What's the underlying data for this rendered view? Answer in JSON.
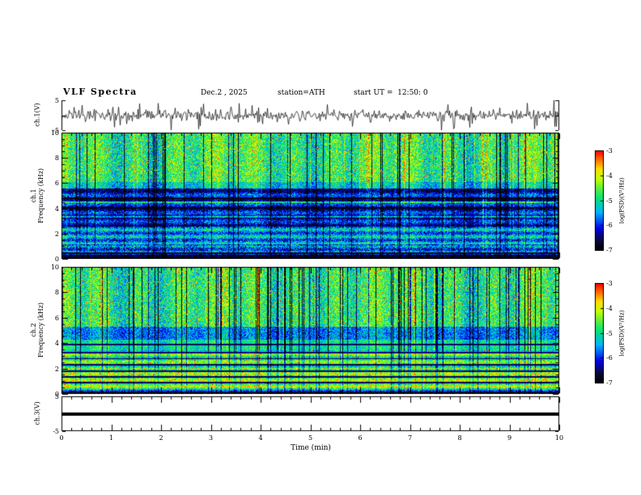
{
  "header": {
    "title": "VLF Spectra",
    "date": "Dec.2 , 2025",
    "station": "station=ATH",
    "start_ut": "start UT =  12:50: 0"
  },
  "time_axis": {
    "label": "Time (min)",
    "ticks": [
      "0",
      "1",
      "2",
      "3",
      "4",
      "5",
      "6",
      "7",
      "8",
      "9",
      "10"
    ],
    "range_min": [
      0,
      10
    ]
  },
  "colorbar": {
    "label": "log(PSD)(V²/Hz)",
    "ticks": [
      "-3",
      "-4",
      "-5",
      "-6",
      "-7"
    ],
    "range": [
      -7,
      -3
    ],
    "colormap": [
      {
        "t": 0.0,
        "c": "#000000"
      },
      {
        "t": 0.1,
        "c": "#0a0a3c"
      },
      {
        "t": 0.22,
        "c": "#0000ee"
      },
      {
        "t": 0.38,
        "c": "#00b4ff"
      },
      {
        "t": 0.52,
        "c": "#00e678"
      },
      {
        "t": 0.62,
        "c": "#5af03c"
      },
      {
        "t": 0.72,
        "c": "#c8ff00"
      },
      {
        "t": 0.82,
        "c": "#ffdc00"
      },
      {
        "t": 0.9,
        "c": "#ff7800"
      },
      {
        "t": 1.0,
        "c": "#ff0000"
      }
    ]
  },
  "chart_data": [
    {
      "type": "line",
      "id": "ch1_waveform",
      "ylabel": "ch.1(V)",
      "ylim": [
        -5,
        5
      ],
      "yticks": [
        "5",
        "-5"
      ],
      "description": "broadband noise waveform around 0 V, typical amplitude ±1.5 V with impulsive spikes to ±4 V over 0-10 min",
      "noise_std_v": 0.9,
      "spike_prob": 0.06,
      "spike_amp_v": [
        2,
        4.2
      ],
      "seed": 11
    },
    {
      "type": "heatmap",
      "id": "ch1_spectrogram",
      "ylabel": [
        "ch.1",
        "Frequency (kHz)"
      ],
      "ylim_khz": [
        0,
        10
      ],
      "yticks": [
        "10",
        "8",
        "6",
        "4",
        "2",
        "0"
      ],
      "psd_range": [
        -7,
        -3
      ],
      "bands": [
        {
          "f": [
            0,
            0.35
          ],
          "base": 0.06,
          "noise": 0.1,
          "streak_gain": 0.2
        },
        {
          "f": [
            0.35,
            1.2
          ],
          "base": 0.3,
          "noise": 0.18,
          "stripe_amp": 0.1,
          "stripe_period": 0.45,
          "streak_gain": 0.35
        },
        {
          "f": [
            1.2,
            2.6
          ],
          "base": 0.36,
          "noise": 0.16,
          "stripe_amp": 0.12,
          "stripe_period": 0.55,
          "streak_gain": 0.4
        },
        {
          "f": [
            2.6,
            5.6
          ],
          "base": 0.2,
          "noise": 0.15,
          "stripe_amp": 0.1,
          "stripe_period": 0.7,
          "streak_gain": 0.6
        },
        {
          "f": [
            5.6,
            6.1
          ],
          "base": 0.44,
          "noise": 0.15,
          "streak_gain": 0.9
        },
        {
          "f": [
            6.1,
            10
          ],
          "base": 0.55,
          "noise": 0.18,
          "speckle_hi": 0.05,
          "streak_gain": 1.0
        }
      ],
      "dark_rows": [
        0.5,
        4.05,
        4.85
      ],
      "bright_rows": [
        3.35,
        4.5
      ],
      "streak_dark_prob": 0.1,
      "streak_bright_prob": 0.06,
      "seed": 21
    },
    {
      "type": "heatmap",
      "id": "ch2_spectrogram",
      "ylabel": [
        "ch.2",
        "Frequency (kHz)"
      ],
      "ylim_khz": [
        0,
        10
      ],
      "yticks": [
        "10",
        "8",
        "6",
        "4",
        "2",
        "0"
      ],
      "psd_range": [
        -7,
        -3
      ],
      "bands": [
        {
          "f": [
            0,
            0.35
          ],
          "base": 0.3,
          "noise": 0.15,
          "streak_gain": 0.3
        },
        {
          "f": [
            0.35,
            2.1
          ],
          "base": 0.62,
          "noise": 0.15,
          "stripe_amp": 0.14,
          "stripe_period": 0.5,
          "speckle_red": 0.03,
          "streak_gain": 0.35
        },
        {
          "f": [
            2.1,
            3.5
          ],
          "base": 0.56,
          "noise": 0.15,
          "stripe_amp": 0.12,
          "stripe_period": 0.6,
          "speckle_red": 0.03,
          "streak_gain": 0.45
        },
        {
          "f": [
            3.5,
            4.3
          ],
          "base": 0.5,
          "noise": 0.14,
          "streak_gain": 0.6
        },
        {
          "f": [
            4.3,
            5.3
          ],
          "base": 0.34,
          "noise": 0.14,
          "streak_gain": 0.7
        },
        {
          "f": [
            5.3,
            10
          ],
          "base": 0.54,
          "noise": 0.18,
          "speckle_hi": 0.05,
          "streak_gain": 1.0
        }
      ],
      "dark_rows": [
        0.15,
        0.9,
        1.35,
        1.8,
        2.3,
        2.8,
        3.3,
        3.9
      ],
      "bright_rows": [],
      "streak_dark_prob": 0.12,
      "streak_bright_prob": 0.05,
      "seed": 33
    },
    {
      "type": "line",
      "id": "ch3_waveform",
      "ylabel": "ch.3(V)",
      "ylim": [
        -5,
        5
      ],
      "yticks": [
        "5",
        "-5"
      ],
      "description": "constant flat trace at 0 V across the whole interval",
      "constant_v": 0,
      "line_width": 4,
      "seed": 44
    }
  ]
}
